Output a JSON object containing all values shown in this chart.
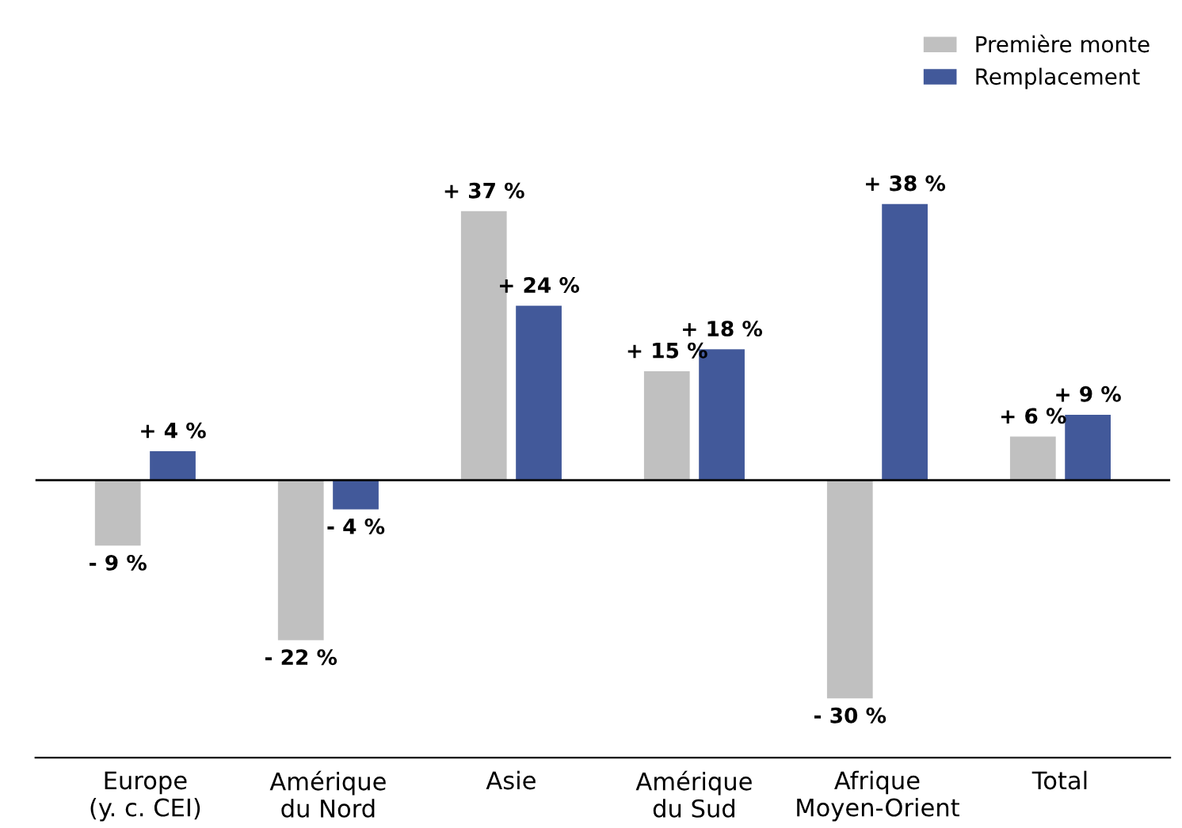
{
  "chart_data": {
    "type": "bar",
    "categories": [
      "Europe\n(y. c. CEI)",
      "Amérique\ndu Nord",
      "Asie",
      "Amérique\ndu Sud",
      "Afrique\nMoyen-Orient",
      "Total"
    ],
    "series": [
      {
        "name": "Première monte",
        "color": "#c0c0c0",
        "values": [
          -9,
          -22,
          37,
          15,
          -30,
          6
        ],
        "value_labels": [
          "- 9 %",
          "- 22 %",
          "+ 37 %",
          "+ 15 %",
          "- 30 %",
          "+ 6 %"
        ]
      },
      {
        "name": "Remplacement",
        "color": "#42599a",
        "values": [
          4,
          -4,
          24,
          18,
          38,
          9
        ],
        "value_labels": [
          "+ 4 %",
          "- 4 %",
          "+ 24 %",
          "+ 18 %",
          "+ 38 %",
          "+ 9 %"
        ]
      }
    ],
    "legend": "top right",
    "grid": false
  }
}
